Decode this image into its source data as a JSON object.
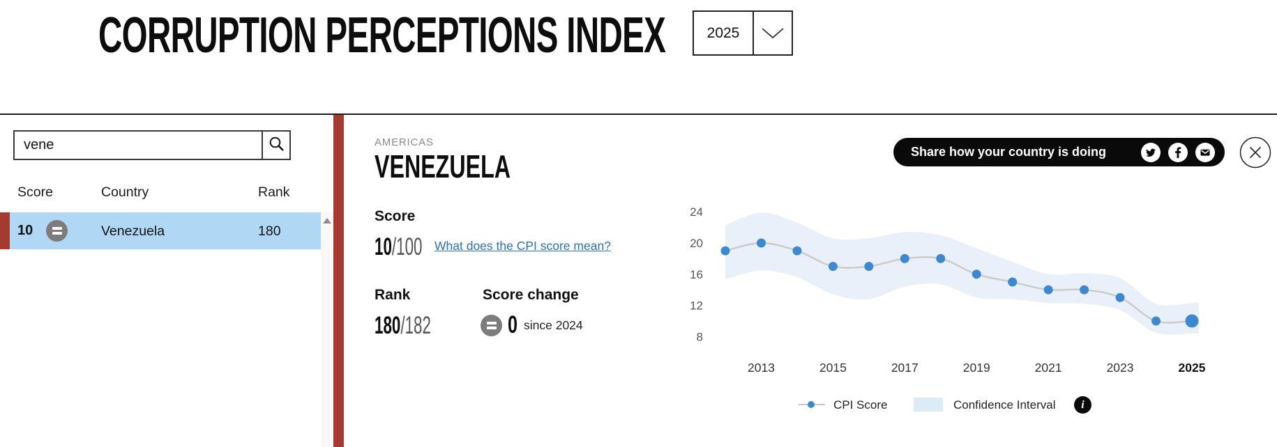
{
  "header": {
    "title": "CORRUPTION PERCEPTIONS INDEX",
    "year_selector": {
      "value": "2025"
    }
  },
  "sidebar": {
    "search": {
      "value": "vene"
    },
    "table": {
      "headers": {
        "score": "Score",
        "country": "Country",
        "rank": "Rank"
      },
      "selected_row": {
        "score": "10",
        "country": "Venezuela",
        "rank": "180",
        "change_icon": "equals-no-change"
      }
    }
  },
  "detail": {
    "region": "AMERICAS",
    "country": "VENEZUELA",
    "score_label": "Score",
    "score": "10",
    "score_denom": "/100",
    "score_link": "What does the CPI score mean?",
    "rank_label": "Rank",
    "rank": "180",
    "rank_denom": "/182",
    "score_change_label": "Score change",
    "score_change_value": "0",
    "score_change_since": "since 2024",
    "score_change_icon": "equals-no-change"
  },
  "share": {
    "label": "Share how your country is doing",
    "icons": [
      "twitter",
      "facebook",
      "email"
    ]
  },
  "chart_data": {
    "type": "line",
    "title": "",
    "xlabel": "",
    "ylabel": "",
    "x_years": [
      2012,
      2013,
      2014,
      2015,
      2016,
      2017,
      2018,
      2019,
      2020,
      2021,
      2022,
      2023,
      2024,
      2025
    ],
    "series": [
      {
        "name": "CPI Score",
        "values": [
          19,
          20,
          19,
          17,
          17,
          18,
          18,
          16,
          15,
          14,
          14,
          13,
          10,
          10
        ]
      }
    ],
    "confidence_interval": {
      "name": "Confidence Interval",
      "upper": [
        22.3,
        23.9,
        22.6,
        20.6,
        20.6,
        21.4,
        21.0,
        19.3,
        17.6,
        16.0,
        16.1,
        15.5,
        12.2,
        12.3
      ],
      "lower": [
        15.3,
        16.5,
        15.6,
        13.4,
        12.8,
        14.4,
        14.7,
        13.0,
        12.8,
        12.3,
        12.2,
        11.4,
        8.5,
        8.4
      ]
    },
    "yticks": [
      24,
      20,
      16,
      12,
      8
    ],
    "xticks": [
      2013,
      2015,
      2017,
      2019,
      2021,
      2023,
      2025
    ],
    "highlighted_xtick": 2025,
    "ylim": [
      6.5,
      26
    ],
    "grid": false,
    "legend_position": "bottom",
    "last_point_emphasized": true
  },
  "colors": {
    "accent_red": "#a63a30",
    "row_highlight": "#b0d8f4",
    "dot_blue": "#3b89d0",
    "band_blue": "#e9f0f9",
    "legend_swatch": "#dcebf6",
    "line_gray": "#cccac8",
    "link_blue": "#2b72b2",
    "circle_gray": "#7c7c7c",
    "ytick_color": "#555555",
    "xtick_color": "#333333"
  }
}
